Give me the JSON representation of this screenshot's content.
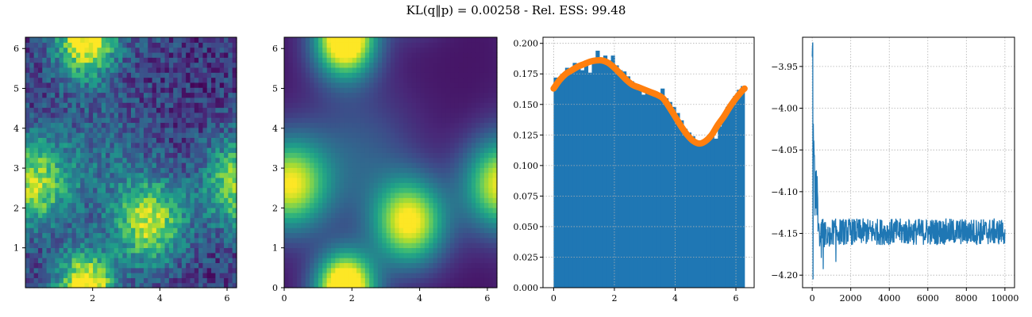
{
  "figure": {
    "suptitle": "KL(q‖p) = 0.00258 - Rel. ESS: 99.48"
  },
  "colors": {
    "bar": "#1f77b4",
    "line": "#1f77b4",
    "density": "#ff7f0e",
    "grid": "#b0b0b0"
  },
  "chart_data": [
    {
      "type": "heatmap",
      "title": "",
      "description_source": "sample histogram of target (noisy)",
      "xlim": [
        0.0,
        6.283
      ],
      "ylim": [
        0.0,
        6.283
      ],
      "xticks": [
        "2",
        "4",
        "6"
      ],
      "yticks": [
        "1",
        "2",
        "3",
        "4",
        "5",
        "6"
      ],
      "grid_size": 50,
      "colormap": "viridis",
      "noisy": true
    },
    {
      "type": "heatmap",
      "title": "",
      "description_source": "smooth density",
      "xlim": [
        0.0,
        6.283
      ],
      "ylim": [
        0.0,
        6.283
      ],
      "xticks": [
        "0",
        "2",
        "4",
        "6"
      ],
      "yticks": [
        "0",
        "1",
        "2",
        "3",
        "4",
        "5",
        "6"
      ],
      "grid_size": 50,
      "colormap": "viridis",
      "noisy": false
    },
    {
      "type": "bar",
      "title": "",
      "xlim": [
        -0.35,
        6.6
      ],
      "ylim": [
        0.0,
        0.205
      ],
      "xticks": [
        "0",
        "2",
        "4",
        "6"
      ],
      "yticks": [
        "0.000",
        "0.025",
        "0.050",
        "0.075",
        "0.100",
        "0.125",
        "0.150",
        "0.175",
        "0.200"
      ],
      "bin_width": 0.1257,
      "values": [
        0.172,
        0.171,
        0.173,
        0.18,
        0.178,
        0.184,
        0.18,
        0.178,
        0.182,
        0.176,
        0.186,
        0.194,
        0.184,
        0.19,
        0.186,
        0.19,
        0.182,
        0.178,
        0.177,
        0.173,
        0.169,
        0.166,
        0.164,
        0.158,
        0.163,
        0.16,
        0.159,
        0.158,
        0.163,
        0.155,
        0.152,
        0.148,
        0.143,
        0.137,
        0.13,
        0.127,
        0.124,
        0.12,
        0.117,
        0.118,
        0.12,
        0.126,
        0.122,
        0.132,
        0.14,
        0.148,
        0.151,
        0.157,
        0.162,
        0.165
      ],
      "density_x": [
        0.0,
        0.2,
        0.4,
        0.6,
        0.8,
        1.0,
        1.2,
        1.4,
        1.6,
        1.8,
        2.0,
        2.2,
        2.4,
        2.6,
        2.8,
        3.0,
        3.2,
        3.4,
        3.6,
        3.8,
        4.0,
        4.2,
        4.4,
        4.6,
        4.8,
        5.0,
        5.2,
        5.4,
        5.6,
        5.8,
        6.0,
        6.2,
        6.283
      ],
      "density_y": [
        0.163,
        0.17,
        0.175,
        0.178,
        0.181,
        0.183,
        0.185,
        0.186,
        0.186,
        0.184,
        0.18,
        0.175,
        0.17,
        0.166,
        0.164,
        0.162,
        0.16,
        0.158,
        0.155,
        0.148,
        0.14,
        0.132,
        0.125,
        0.12,
        0.118,
        0.12,
        0.125,
        0.133,
        0.14,
        0.148,
        0.155,
        0.161,
        0.163
      ]
    },
    {
      "type": "line",
      "title": "",
      "xlim": [
        -500,
        10500
      ],
      "ylim": [
        -4.215,
        -3.915
      ],
      "xticks": [
        "0",
        "2000",
        "4000",
        "6000",
        "8000",
        "10000"
      ],
      "yticks": [
        "−3.95",
        "−4.00",
        "−4.05",
        "−4.10",
        "−4.15",
        "−4.20"
      ],
      "x_max": 10000,
      "converged_mean": -4.148,
      "initial_peak": -3.93,
      "initial_dip": -4.205
    }
  ]
}
